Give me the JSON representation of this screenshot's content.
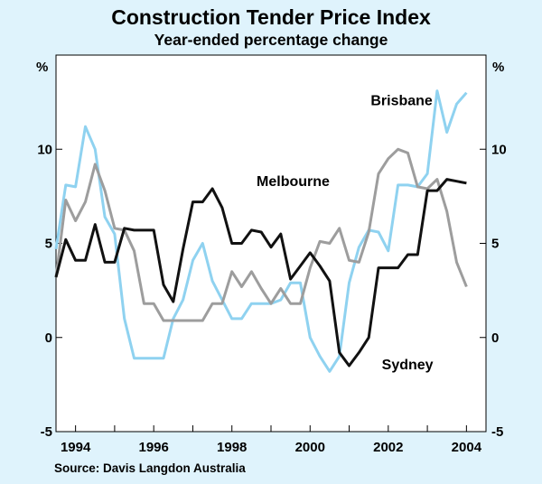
{
  "chart_data": {
    "type": "line",
    "title": "Construction Tender Price Index",
    "subtitle": "Year-ended percentage change",
    "ylabel_left": "%",
    "ylabel_right": "%",
    "ylim": [
      -5,
      15
    ],
    "yticks": [
      -5,
      0,
      5,
      10
    ],
    "xlim": [
      1993.5,
      2004.5
    ],
    "xticks": [
      1994,
      1996,
      1998,
      2000,
      2002,
      2004
    ],
    "grid": false,
    "source": "Source: Davis Langdon Australia",
    "series": [
      {
        "name": "Brisbane",
        "color": "#8fd2f0",
        "x": [
          1993.5,
          1993.75,
          1994.0,
          1994.25,
          1994.5,
          1994.75,
          1995.0,
          1995.25,
          1995.5,
          1995.75,
          1996.0,
          1996.25,
          1996.5,
          1996.75,
          1997.0,
          1997.25,
          1997.5,
          1997.75,
          1998.0,
          1998.25,
          1998.5,
          1998.75,
          1999.0,
          1999.25,
          1999.5,
          1999.75,
          2000.0,
          2000.25,
          2000.5,
          2000.75,
          2001.0,
          2001.25,
          2001.5,
          2001.75,
          2002.0,
          2002.25,
          2002.5,
          2002.75,
          2003.0,
          2003.25,
          2003.5,
          2003.75,
          2004.0
        ],
        "values": [
          4.7,
          8.1,
          8.0,
          11.2,
          10.0,
          6.4,
          5.5,
          1.0,
          -1.1,
          -1.1,
          -1.1,
          -1.1,
          1.0,
          2.0,
          4.1,
          5.0,
          3.0,
          2.0,
          1.0,
          1.0,
          1.8,
          1.8,
          1.8,
          2.0,
          2.9,
          2.9,
          0.0,
          -1.0,
          -1.8,
          -1.0,
          2.9,
          4.8,
          5.7,
          5.6,
          4.6,
          8.1,
          8.1,
          8.0,
          8.7,
          13.1,
          10.9,
          12.4,
          13.0
        ]
      },
      {
        "name": "Melbourne",
        "color": "#9d9d9d",
        "x": [
          1993.5,
          1993.75,
          1994.0,
          1994.25,
          1994.5,
          1994.75,
          1995.0,
          1995.25,
          1995.5,
          1995.75,
          1996.0,
          1996.25,
          1996.5,
          1996.75,
          1997.0,
          1997.25,
          1997.5,
          1997.75,
          1998.0,
          1998.25,
          1998.5,
          1998.75,
          1999.0,
          1999.25,
          1999.5,
          1999.75,
          2000.0,
          2000.25,
          2000.5,
          2000.75,
          2001.0,
          2001.25,
          2001.5,
          2001.75,
          2002.0,
          2002.25,
          2002.5,
          2002.75,
          2003.0,
          2003.25,
          2003.5,
          2003.75,
          2004.0
        ],
        "values": [
          3.2,
          7.3,
          6.2,
          7.2,
          9.2,
          7.8,
          5.8,
          5.7,
          4.6,
          1.8,
          1.8,
          0.9,
          0.9,
          0.9,
          0.9,
          0.9,
          1.8,
          1.8,
          3.5,
          2.7,
          3.5,
          2.6,
          1.8,
          2.6,
          1.8,
          1.8,
          3.7,
          5.1,
          5.0,
          5.8,
          4.1,
          4.0,
          5.6,
          8.7,
          9.5,
          10.0,
          9.8,
          8.0,
          7.9,
          8.4,
          6.7,
          4.0,
          2.7
        ]
      },
      {
        "name": "Sydney",
        "color": "#111111",
        "x": [
          1993.5,
          1993.75,
          1994.0,
          1994.25,
          1994.5,
          1994.75,
          1995.0,
          1995.25,
          1995.5,
          1995.75,
          1996.0,
          1996.25,
          1996.5,
          1996.75,
          1997.0,
          1997.25,
          1997.5,
          1997.75,
          1998.0,
          1998.25,
          1998.5,
          1998.75,
          1999.0,
          1999.25,
          1999.5,
          1999.75,
          2000.0,
          2000.25,
          2000.5,
          2000.75,
          2001.0,
          2001.25,
          2001.5,
          2001.75,
          2002.0,
          2002.25,
          2002.5,
          2002.75,
          2003.0,
          2003.25,
          2003.5,
          2003.75,
          2004.0
        ],
        "values": [
          3.2,
          5.2,
          4.1,
          4.1,
          6.0,
          4.0,
          4.0,
          5.8,
          5.7,
          5.7,
          5.7,
          2.8,
          1.9,
          4.7,
          7.2,
          7.2,
          7.9,
          6.9,
          5.0,
          5.0,
          5.7,
          5.6,
          4.8,
          5.5,
          3.1,
          3.8,
          4.5,
          3.8,
          3.0,
          -0.8,
          -1.5,
          -0.8,
          0.0,
          3.7,
          3.7,
          3.7,
          4.4,
          4.4,
          7.8,
          7.8,
          8.4,
          8.3,
          8.2
        ]
      }
    ],
    "labels": [
      {
        "text": "Brisbane",
        "series": "Brisbane"
      },
      {
        "text": "Melbourne",
        "series": "Melbourne"
      },
      {
        "text": "Sydney",
        "series": "Sydney"
      }
    ]
  }
}
